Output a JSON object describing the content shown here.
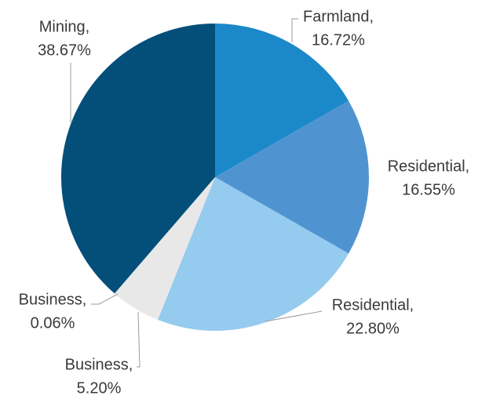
{
  "chart_data": {
    "type": "pie",
    "categories": [
      "Farmland,",
      "Residential,",
      "Residential,",
      "Business,",
      "Business,",
      "Mining,"
    ],
    "values": [
      16.72,
      16.55,
      22.8,
      5.2,
      0.06,
      38.67
    ],
    "value_labels": [
      "16.72%",
      "16.55%",
      "22.80%",
      "5.20%",
      "0.06%",
      "38.67%"
    ],
    "colors": [
      "#1a88c9",
      "#4f94d0",
      "#95cbee",
      "#e8e8e8",
      "#e8e8e8",
      "#034f7a"
    ]
  }
}
